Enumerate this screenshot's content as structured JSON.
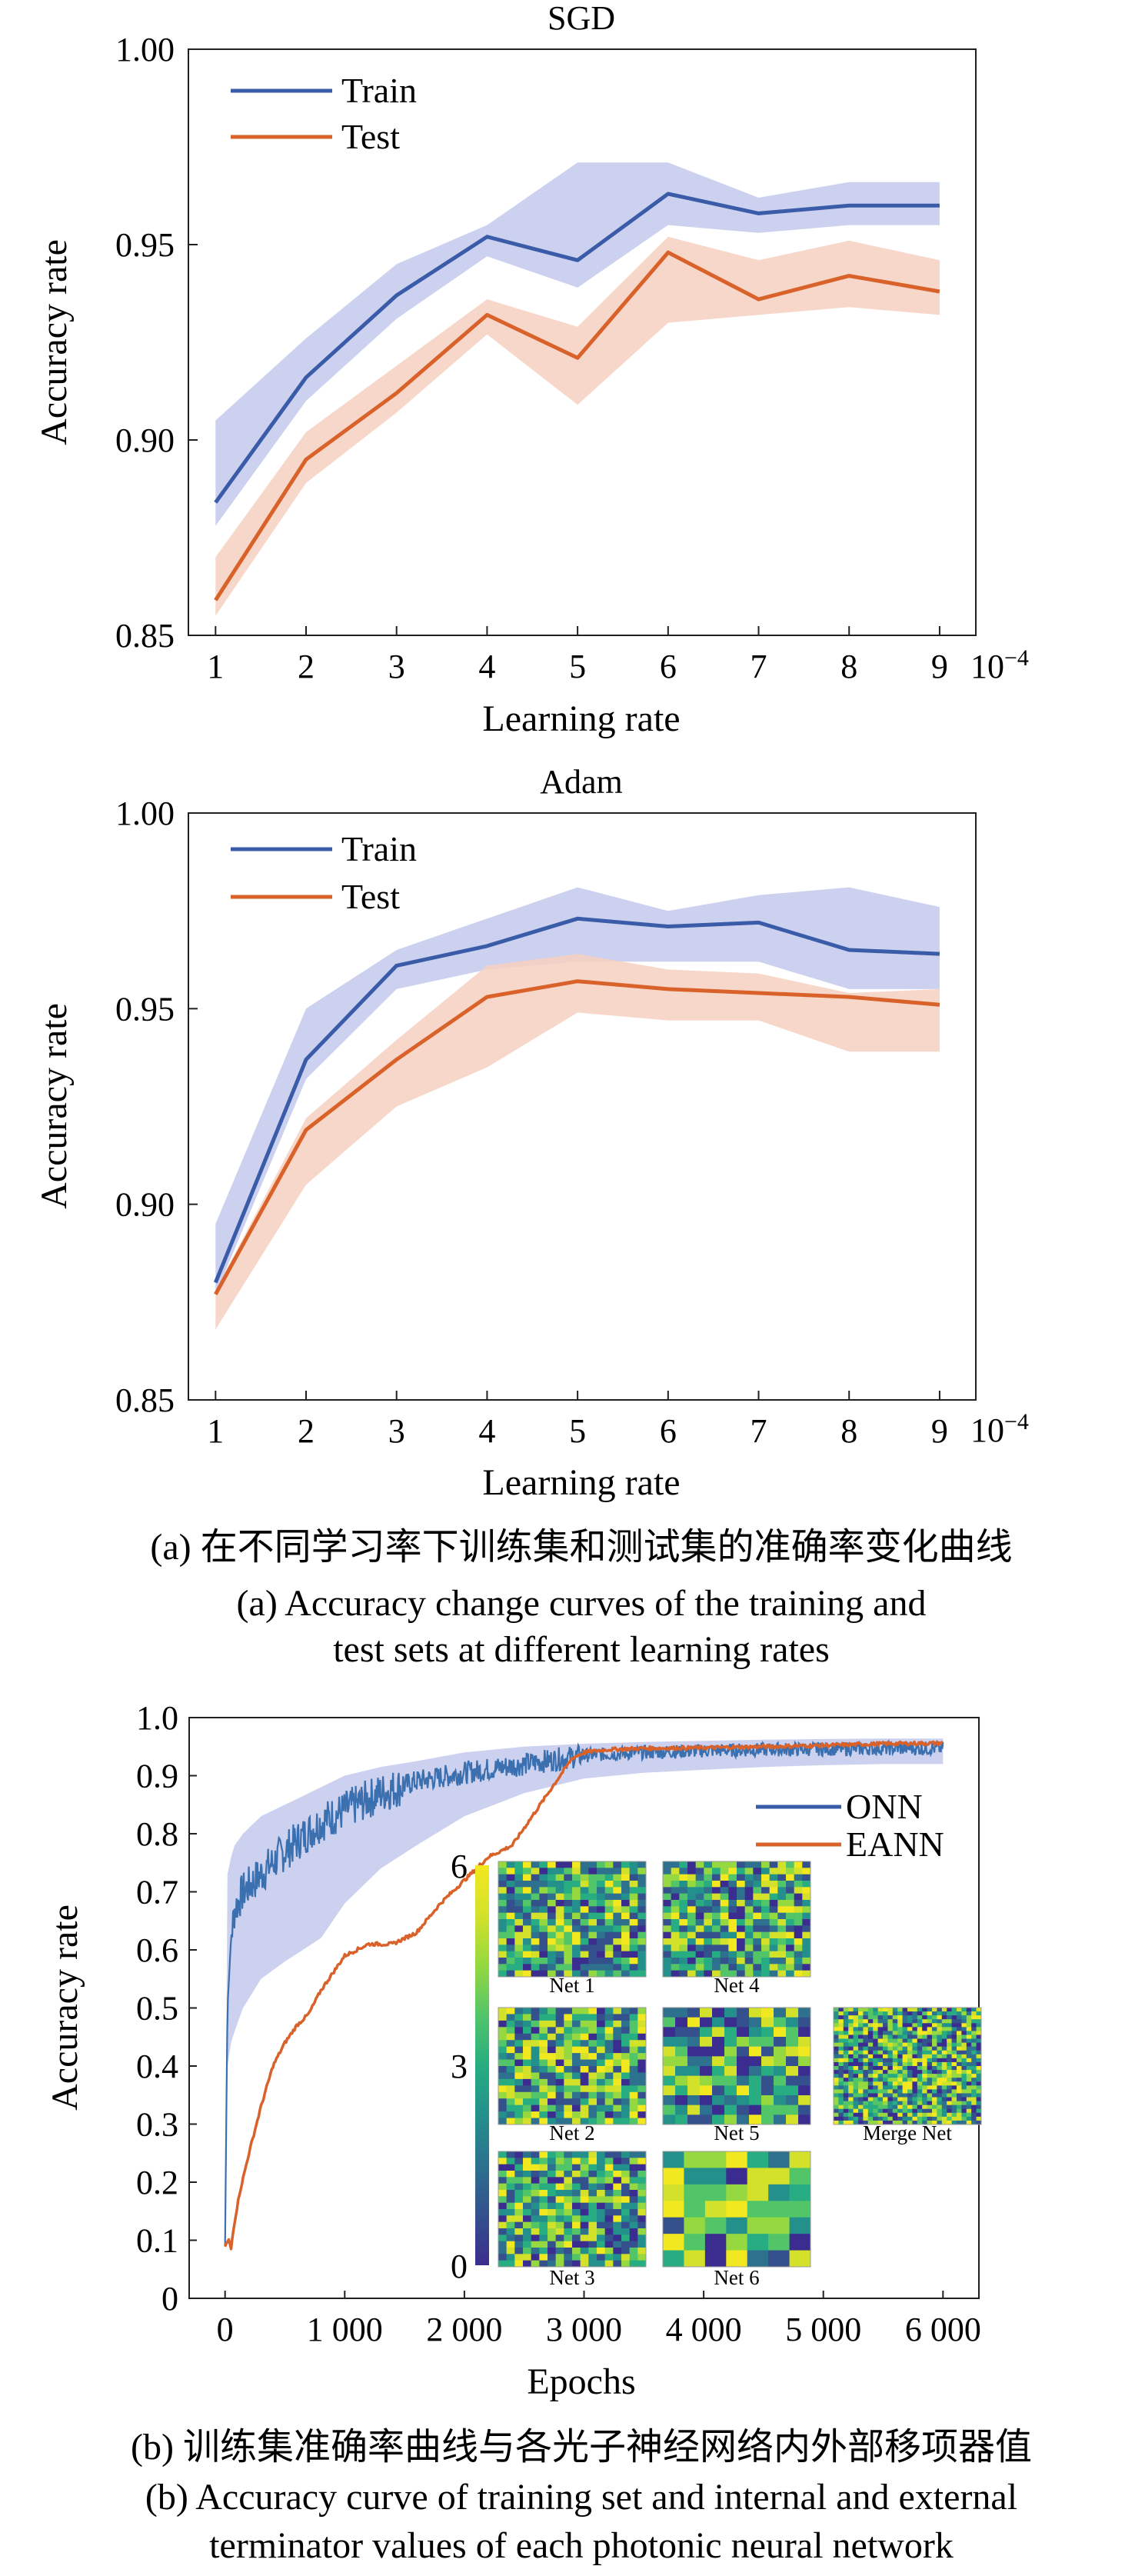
{
  "figure": {
    "caption_a_cn": "(a) 在不同学习率下训练集和测试集的准确率变化曲线",
    "caption_a_en_line1": "(a) Accuracy change curves of the training and",
    "caption_a_en_line2": "test sets at different learning rates",
    "caption_b_cn": "(b) 训练集准确率曲线与各光子神经网络内外部移项器值",
    "caption_b_en_line1": "(b) Accuracy curve of training set and internal and external",
    "caption_b_en_line2": "terminator values of each photonic neural network"
  },
  "colors": {
    "train": "#3a5ba8",
    "test": "#d9622b",
    "train_band": "#c3c9ec",
    "test_band": "#f6d0c0"
  },
  "chart_data": [
    {
      "type": "line",
      "title": "SGD",
      "xlabel": "Learning rate",
      "ylabel": "Accuracy rate",
      "x_multiplier": "10",
      "x_multiplier_exp": "−4",
      "x": [
        1,
        2,
        3,
        4,
        5,
        6,
        7,
        8,
        9
      ],
      "xticks": [
        "1",
        "2",
        "3",
        "4",
        "5",
        "6",
        "7",
        "8",
        "9"
      ],
      "yticks": [
        "0.85",
        "0.90",
        "0.95",
        "1.00"
      ],
      "ylim": [
        0.85,
        1.0
      ],
      "xlim": [
        0.7,
        9.4
      ],
      "legend_position": "top-left",
      "series": [
        {
          "name": "Train",
          "values": [
            0.884,
            0.916,
            0.937,
            0.952,
            0.946,
            0.963,
            0.958,
            0.96,
            0.96
          ],
          "band_low": [
            0.878,
            0.91,
            0.931,
            0.947,
            0.939,
            0.955,
            0.953,
            0.955,
            0.955
          ],
          "band_high": [
            0.905,
            0.926,
            0.945,
            0.955,
            0.971,
            0.971,
            0.962,
            0.966,
            0.966
          ]
        },
        {
          "name": "Test",
          "values": [
            0.859,
            0.895,
            0.912,
            0.932,
            0.921,
            0.948,
            0.936,
            0.942,
            0.938
          ],
          "band_low": [
            0.855,
            0.889,
            0.907,
            0.927,
            0.909,
            0.93,
            0.932,
            0.934,
            0.932
          ],
          "band_high": [
            0.87,
            0.902,
            0.919,
            0.936,
            0.929,
            0.952,
            0.946,
            0.951,
            0.946
          ]
        }
      ]
    },
    {
      "type": "line",
      "title": "Adam",
      "xlabel": "Learning rate",
      "ylabel": "Accuracy rate",
      "x_multiplier": "10",
      "x_multiplier_exp": "−4",
      "x": [
        1,
        2,
        3,
        4,
        5,
        6,
        7,
        8,
        9
      ],
      "xticks": [
        "1",
        "2",
        "3",
        "4",
        "5",
        "6",
        "7",
        "8",
        "9"
      ],
      "yticks": [
        "0.85",
        "0.90",
        "0.95",
        "1.00"
      ],
      "ylim": [
        0.85,
        1.0
      ],
      "xlim": [
        0.7,
        9.4
      ],
      "legend_position": "top-left",
      "series": [
        {
          "name": "Train",
          "values": [
            0.88,
            0.937,
            0.961,
            0.966,
            0.973,
            0.971,
            0.972,
            0.965,
            0.964
          ],
          "band_low": [
            0.877,
            0.932,
            0.955,
            0.96,
            0.962,
            0.962,
            0.962,
            0.955,
            0.955
          ],
          "band_high": [
            0.895,
            0.95,
            0.965,
            0.973,
            0.981,
            0.975,
            0.979,
            0.981,
            0.976
          ]
        },
        {
          "name": "Test",
          "values": [
            0.877,
            0.919,
            0.937,
            0.953,
            0.957,
            0.955,
            0.954,
            0.953,
            0.951
          ],
          "band_low": [
            0.868,
            0.905,
            0.925,
            0.935,
            0.949,
            0.947,
            0.947,
            0.939,
            0.939
          ],
          "band_high": [
            0.878,
            0.922,
            0.942,
            0.961,
            0.964,
            0.96,
            0.959,
            0.954,
            0.955
          ]
        }
      ]
    },
    {
      "type": "line",
      "xlabel": "Epochs",
      "ylabel": "Accuracy rate",
      "xticks": [
        "0",
        "1 000",
        "2 000",
        "3 000",
        "4 000",
        "5 000",
        "6 000"
      ],
      "xtick_values": [
        0,
        1000,
        2000,
        3000,
        4000,
        5000,
        6000
      ],
      "yticks": [
        "0",
        "0.1",
        "0.2",
        "0.3",
        "0.4",
        "0.5",
        "0.6",
        "0.7",
        "0.8",
        "0.9",
        "1.0"
      ],
      "ylim": [
        0,
        1.0
      ],
      "xlim": [
        -300,
        6300
      ],
      "legend_position": "right",
      "series": [
        {
          "name": "ONN",
          "x": [
            0,
            20,
            50,
            80,
            150,
            300,
            500,
            800,
            1000,
            1300,
            1600,
            2000,
            2500,
            3000,
            3500,
            4000,
            4500,
            5000,
            5500,
            6000
          ],
          "values": [
            0.09,
            0.5,
            0.62,
            0.67,
            0.7,
            0.73,
            0.77,
            0.82,
            0.84,
            0.87,
            0.89,
            0.905,
            0.92,
            0.935,
            0.94,
            0.943,
            0.945,
            0.946,
            0.947,
            0.947
          ],
          "band_low": [
            0.09,
            0.4,
            0.44,
            0.46,
            0.5,
            0.55,
            0.58,
            0.62,
            0.68,
            0.74,
            0.78,
            0.83,
            0.87,
            0.895,
            0.905,
            0.91,
            0.915,
            0.918,
            0.92,
            0.92
          ],
          "band_high": [
            0.12,
            0.73,
            0.76,
            0.78,
            0.8,
            0.83,
            0.85,
            0.88,
            0.9,
            0.915,
            0.925,
            0.94,
            0.95,
            0.955,
            0.958,
            0.96,
            0.962,
            0.963,
            0.964,
            0.964
          ]
        },
        {
          "name": "EANN",
          "x": [
            0,
            30,
            50,
            70,
            120,
            200,
            300,
            400,
            500,
            600,
            700,
            800,
            1000,
            1200,
            1400,
            1600,
            1800,
            2000,
            2200,
            2400,
            2600,
            2700,
            2800,
            2900,
            3000,
            3200,
            3500,
            4000,
            4500,
            5000,
            5500,
            6000
          ],
          "values": [
            0.09,
            0.1,
            0.085,
            0.12,
            0.18,
            0.25,
            0.33,
            0.4,
            0.44,
            0.47,
            0.49,
            0.53,
            0.59,
            0.61,
            0.61,
            0.63,
            0.68,
            0.72,
            0.76,
            0.78,
            0.84,
            0.87,
            0.9,
            0.93,
            0.94,
            0.945,
            0.947,
            0.948,
            0.95,
            0.952,
            0.955,
            0.956
          ]
        }
      ],
      "inset": {
        "colorbar_ticks": [
          "0",
          "3",
          "6"
        ],
        "nets": [
          {
            "label": "Net 1",
            "grid": 18
          },
          {
            "label": "Net 4",
            "grid": 18
          },
          {
            "label": "Net 2",
            "grid": 18
          },
          {
            "label": "Net 5",
            "grid": 12
          },
          {
            "label": "Merge Net",
            "grid": 30
          },
          {
            "label": "Net 3",
            "grid": 18
          },
          {
            "label": "Net 6",
            "grid": 7
          }
        ]
      }
    }
  ]
}
